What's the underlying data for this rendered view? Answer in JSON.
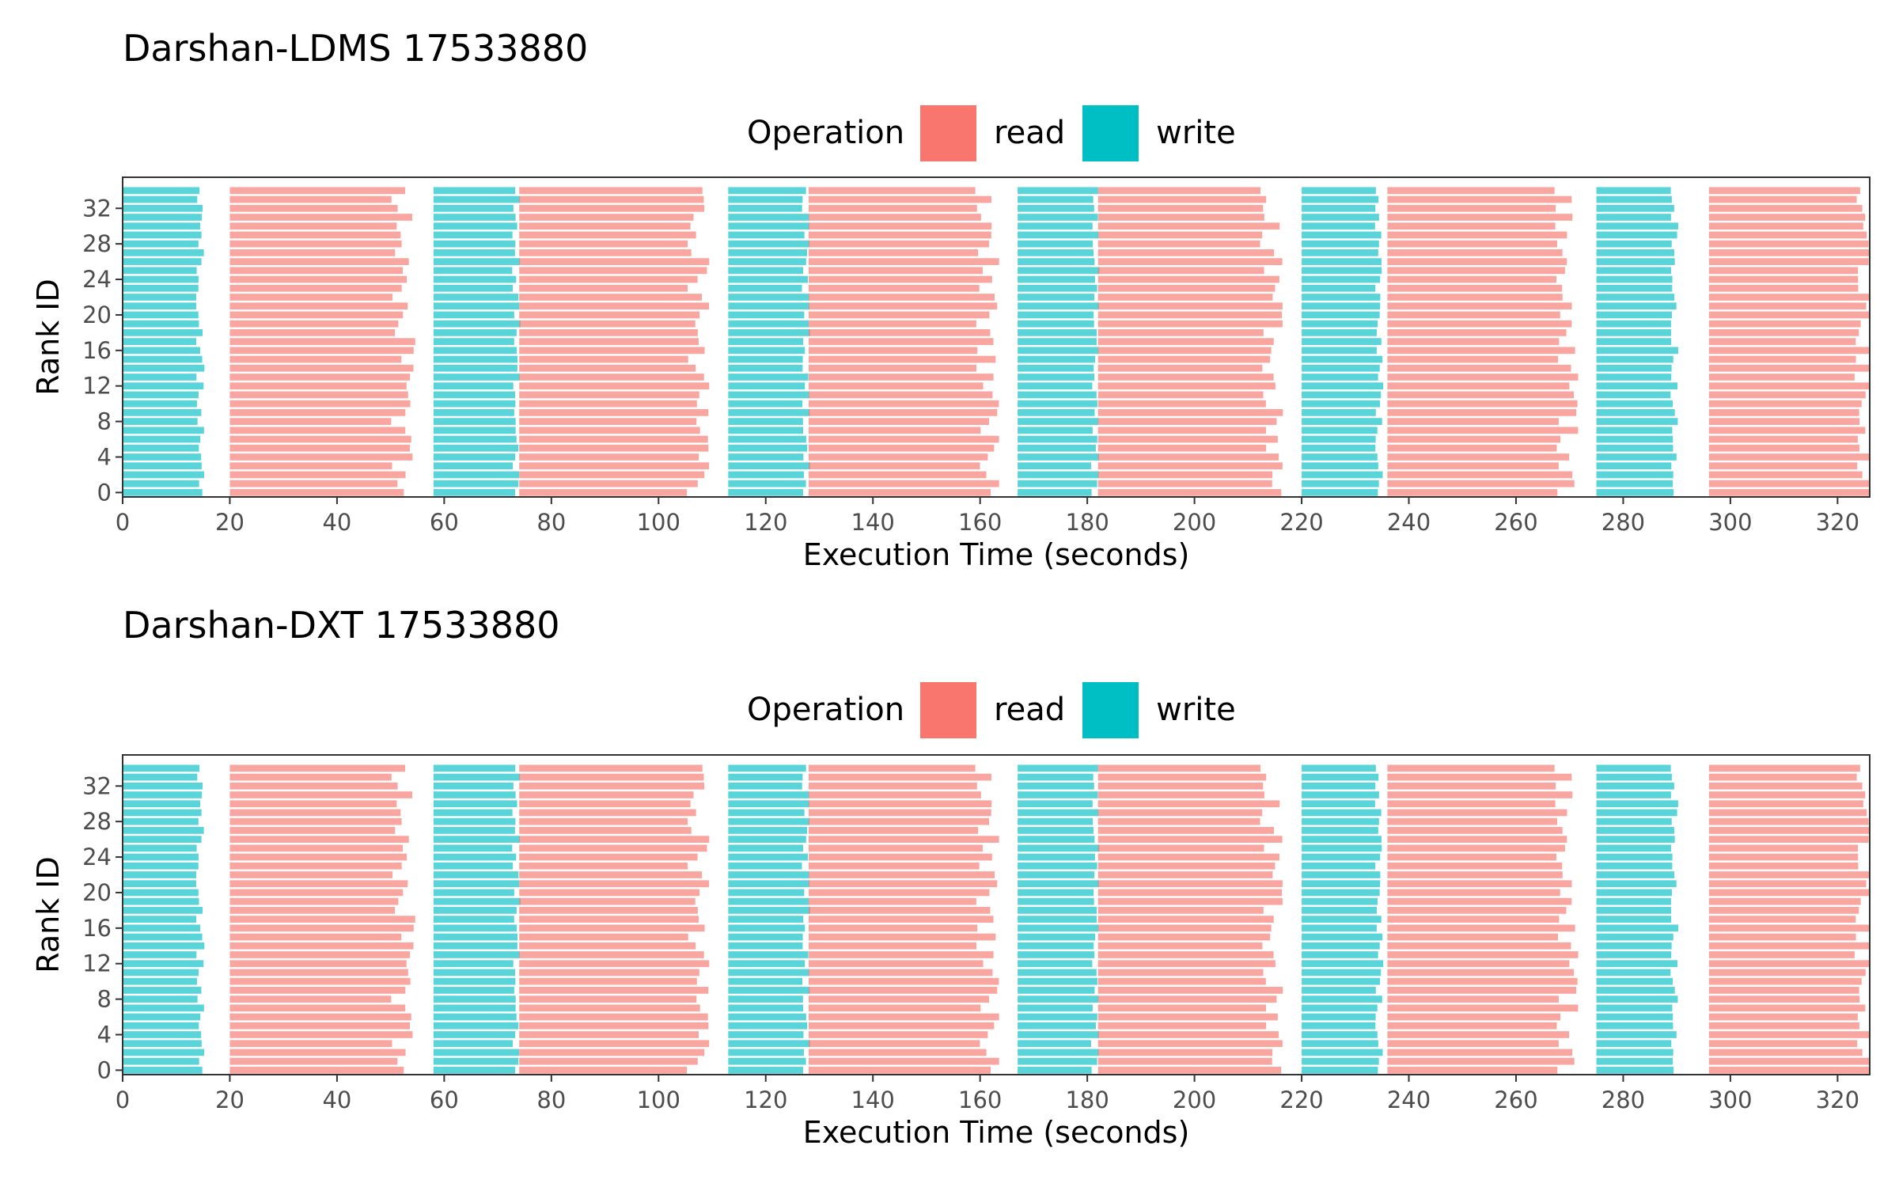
{
  "chart_data": [
    {
      "type": "bar",
      "title": "Darshan-LDMS 17533880",
      "xlabel": "Execution Time (seconds)",
      "ylabel": "Rank ID",
      "xlim": [
        0,
        326
      ],
      "ylim": [
        -0.5,
        35.5
      ],
      "x_ticks": [
        "0",
        "20",
        "40",
        "60",
        "80",
        "100",
        "120",
        "140",
        "160",
        "180",
        "200",
        "220",
        "240",
        "260",
        "280",
        "300",
        "320"
      ],
      "y_ticks": [
        "0",
        "4",
        "8",
        "12",
        "16",
        "20",
        "24",
        "28",
        "32"
      ],
      "legend": {
        "title": "Operation",
        "position": "top",
        "entries": [
          {
            "label": "read",
            "color": "#F8766D"
          },
          {
            "label": "write",
            "color": "#00BFC4"
          }
        ]
      },
      "ranks": 35,
      "phases": [
        {
          "op": "write",
          "start": 0,
          "end": 14
        },
        {
          "op": "read",
          "start": 20,
          "end": 51
        },
        {
          "op": "write",
          "start": 58,
          "end": 73
        },
        {
          "op": "read",
          "start": 74,
          "end": 106
        },
        {
          "op": "write",
          "start": 113,
          "end": 127
        },
        {
          "op": "read",
          "start": 128,
          "end": 160
        },
        {
          "op": "write",
          "start": 167,
          "end": 181
        },
        {
          "op": "read",
          "start": 182,
          "end": 213
        },
        {
          "op": "write",
          "start": 220,
          "end": 234
        },
        {
          "op": "read",
          "start": 236,
          "end": 268
        },
        {
          "op": "write",
          "start": 275,
          "end": 289
        },
        {
          "op": "read",
          "start": 296,
          "end": 324
        }
      ]
    },
    {
      "type": "bar",
      "title": "Darshan-DXT 17533880",
      "xlabel": "Execution Time (seconds)",
      "ylabel": "Rank ID",
      "xlim": [
        0,
        326
      ],
      "ylim": [
        -0.5,
        35.5
      ],
      "x_ticks": [
        "0",
        "20",
        "40",
        "60",
        "80",
        "100",
        "120",
        "140",
        "160",
        "180",
        "200",
        "220",
        "240",
        "260",
        "280",
        "300",
        "320"
      ],
      "y_ticks": [
        "0",
        "4",
        "8",
        "12",
        "16",
        "20",
        "24",
        "28",
        "32"
      ],
      "legend": {
        "title": "Operation",
        "position": "top",
        "entries": [
          {
            "label": "read",
            "color": "#F8766D"
          },
          {
            "label": "write",
            "color": "#00BFC4"
          }
        ]
      },
      "ranks": 35,
      "phases": [
        {
          "op": "write",
          "start": 0,
          "end": 14
        },
        {
          "op": "read",
          "start": 20,
          "end": 51
        },
        {
          "op": "write",
          "start": 58,
          "end": 73
        },
        {
          "op": "read",
          "start": 74,
          "end": 106
        },
        {
          "op": "write",
          "start": 113,
          "end": 127
        },
        {
          "op": "read",
          "start": 128,
          "end": 160
        },
        {
          "op": "write",
          "start": 167,
          "end": 181
        },
        {
          "op": "read",
          "start": 182,
          "end": 213
        },
        {
          "op": "write",
          "start": 220,
          "end": 234
        },
        {
          "op": "read",
          "start": 236,
          "end": 268
        },
        {
          "op": "write",
          "start": 275,
          "end": 289
        },
        {
          "op": "read",
          "start": 296,
          "end": 324
        }
      ]
    }
  ]
}
